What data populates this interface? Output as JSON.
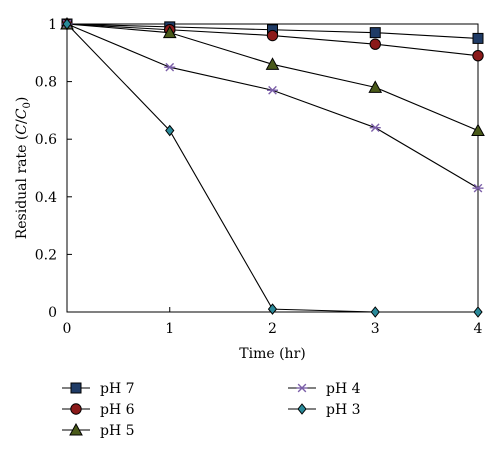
{
  "chart_data": {
    "type": "line",
    "xlabel": "Time (hr)",
    "ylabel": "Residual rate (C/C0)",
    "xlim": [
      0,
      4
    ],
    "ylim": [
      0,
      1
    ],
    "xticks": [
      "0",
      "1",
      "2",
      "3",
      "4"
    ],
    "yticks": [
      "0",
      "0.2",
      "0.4",
      "0.6",
      "0.8",
      "1"
    ],
    "x": [
      0,
      1,
      2,
      3,
      4
    ],
    "grid": false,
    "legend_position": "bottom",
    "series": [
      {
        "name": "pH 7",
        "marker": "square",
        "fill": "#1f3b66",
        "values": [
          1.0,
          0.99,
          0.98,
          0.97,
          0.95
        ]
      },
      {
        "name": "pH 6",
        "marker": "circle",
        "fill": "#8b1a1a",
        "values": [
          1.0,
          0.98,
          0.96,
          0.93,
          0.89
        ]
      },
      {
        "name": "pH 5",
        "marker": "triangle",
        "fill": "#4a5a1a",
        "values": [
          1.0,
          0.97,
          0.86,
          0.78,
          0.63
        ]
      },
      {
        "name": "pH 4",
        "marker": "asterisk",
        "fill": "#7b5fa8",
        "values": [
          1.0,
          0.85,
          0.77,
          0.64,
          0.43
        ]
      },
      {
        "name": "pH 3",
        "marker": "diamond",
        "fill": "#2a8a9a",
        "values": [
          1.0,
          0.63,
          0.01,
          0.0,
          0.0
        ]
      }
    ]
  }
}
